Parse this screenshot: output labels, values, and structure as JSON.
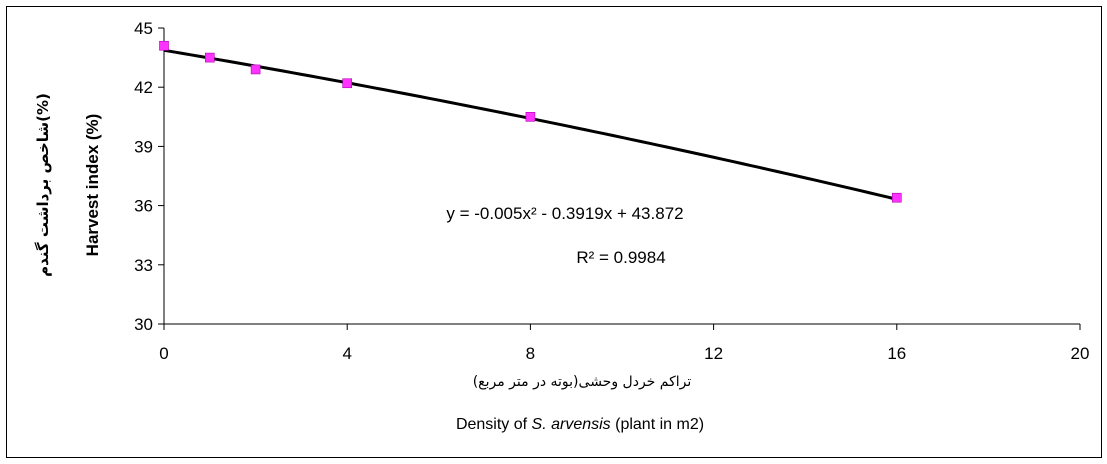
{
  "chart_data": {
    "type": "scatter",
    "x": [
      0,
      1,
      2,
      4,
      8,
      16
    ],
    "y": [
      44.1,
      43.5,
      42.9,
      42.2,
      40.5,
      36.4
    ],
    "marker_color": "#ff33ff",
    "trendline": {
      "type": "polynomial",
      "coefficients": {
        "a": -0.005,
        "b": -0.3919,
        "c": 43.872
      },
      "equation_label": "y = -0.005x² - 0.3919x + 43.872",
      "r2_label": "R² = 0.9984",
      "color": "#000000"
    },
    "xlim": [
      0,
      20
    ],
    "xticks": [
      0,
      4,
      8,
      12,
      16,
      20
    ],
    "ylim": [
      30,
      45
    ],
    "yticks": [
      30,
      33,
      36,
      39,
      42,
      45
    ],
    "xlabel_fa": "تراکم خردل وحشی(بوته در متر مربع)",
    "xlabel_en": {
      "prefix": "Density of ",
      "species": "S. arvensis",
      "suffix": " (plant in m2)"
    },
    "ylabel_en": "Harvest index (%)",
    "ylabel_fa": "شاخص برداشت گندم(%)",
    "grid": false,
    "legend": "none"
  }
}
